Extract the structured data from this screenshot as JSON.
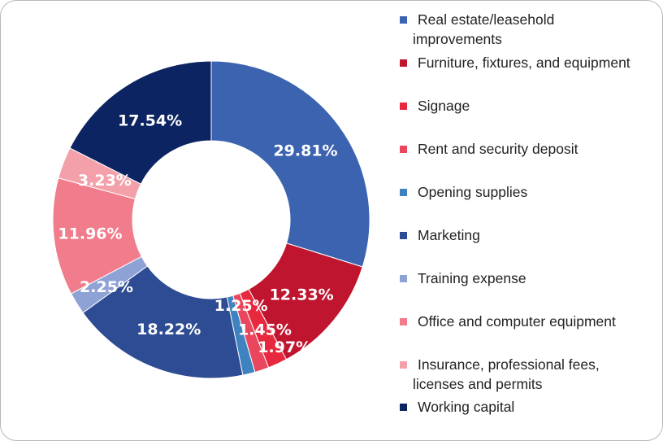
{
  "chart_data": {
    "type": "pie",
    "donut": true,
    "slices": [
      {
        "label": "Real estate/leasehold improvements",
        "value": 29.81,
        "value_label": "29.81%",
        "color": "#3b63b0"
      },
      {
        "label": "Furniture, fixtures, and equipment",
        "value": 12.33,
        "value_label": "12.33%",
        "color": "#c0152f"
      },
      {
        "label": "Signage",
        "value": 1.97,
        "value_label": "1.97%",
        "color": "#e8283f"
      },
      {
        "label": "Rent and security deposit",
        "value": 1.45,
        "value_label": "1.45%",
        "color": "#e8475e"
      },
      {
        "label": "Opening supplies",
        "value": 1.25,
        "value_label": "1.25%",
        "color": "#3e82c0"
      },
      {
        "label": "Marketing",
        "value": 18.22,
        "value_label": "18.22%",
        "color": "#2e4c93"
      },
      {
        "label": "Training expense",
        "value": 2.25,
        "value_label": "2.25%",
        "color": "#8fa2d6"
      },
      {
        "label": "Office and computer equipment",
        "value": 11.96,
        "value_label": "11.96%",
        "color": "#f07c8c"
      },
      {
        "label": "Insurance, professional fees, licenses and permits",
        "value": 3.23,
        "value_label": "3.23%",
        "color": "#f3a0ab"
      },
      {
        "label": "Working capital",
        "value": 17.54,
        "value_label": "17.54%",
        "color": "#0c2461"
      }
    ],
    "legend_position": "right"
  },
  "legend": [
    {
      "line1": "Real estate/leasehold",
      "line2": "improvements"
    },
    {
      "line1": "Furniture, fixtures, and equipment",
      "line2": ""
    },
    {
      "line1": "Signage",
      "line2": ""
    },
    {
      "line1": "Rent and security deposit",
      "line2": ""
    },
    {
      "line1": "Opening supplies",
      "line2": ""
    },
    {
      "line1": "Marketing",
      "line2": ""
    },
    {
      "line1": "Training expense",
      "line2": ""
    },
    {
      "line1": "Office and computer equipment",
      "line2": ""
    },
    {
      "line1": "Insurance, professional fees,",
      "line2": "licenses and permits"
    },
    {
      "line1": "Working capital",
      "line2": ""
    }
  ]
}
